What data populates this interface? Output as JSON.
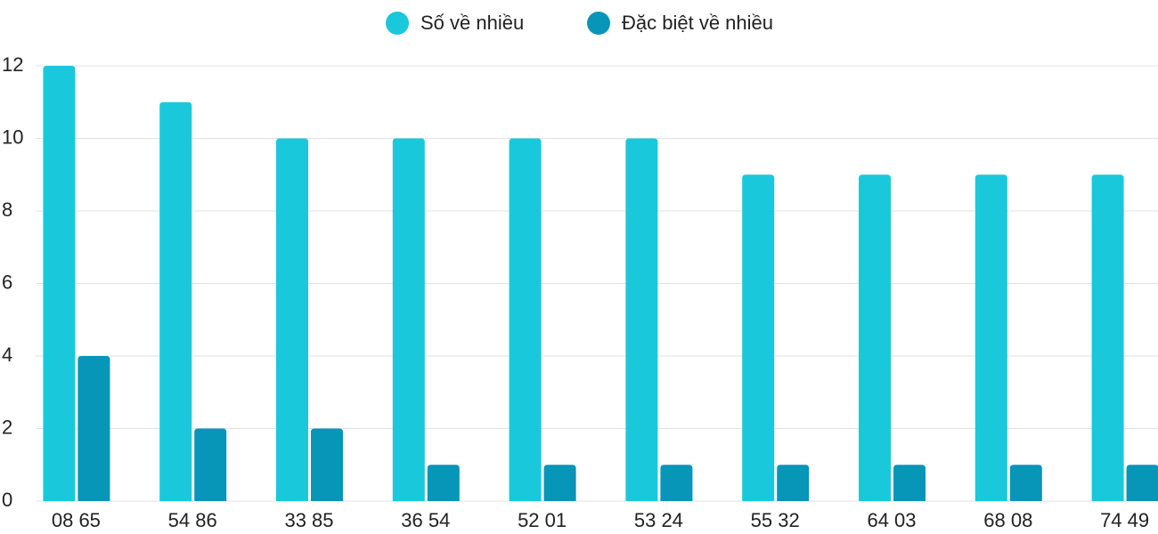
{
  "chart_data": {
    "type": "bar",
    "categories": [
      "08 65",
      "54 86",
      "33 85",
      "36 54",
      "52 01",
      "53 24",
      "55 32",
      "64 03",
      "68 08",
      "74 49"
    ],
    "series": [
      {
        "name": "Số về nhiều",
        "color": "#1ac8db",
        "values": [
          12,
          11,
          10,
          10,
          10,
          10,
          9,
          9,
          9,
          9
        ]
      },
      {
        "name": "Đặc biệt về nhiều",
        "color": "#0795b8",
        "values": [
          4,
          2,
          2,
          1,
          1,
          1,
          1,
          1,
          1,
          1
        ]
      }
    ],
    "ylim": [
      0,
      12
    ],
    "yticks": [
      0,
      2,
      4,
      6,
      8,
      10,
      12
    ],
    "grid": true,
    "legend": "top"
  }
}
